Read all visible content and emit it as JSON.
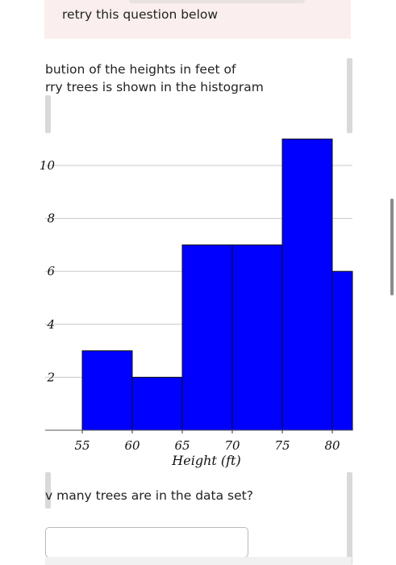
{
  "banner": {
    "text": "retry this question below"
  },
  "prompt": {
    "line1": "bution of the heights in feet of",
    "line2": "rry trees is shown in the histogram"
  },
  "question": {
    "text": "v many trees are in the data set?"
  },
  "answer": {
    "value": ""
  },
  "colors": {
    "bar": "#0000ff",
    "bar_stroke": "#111111",
    "grid": "#c8c8c8",
    "banner": "#fbeeee"
  },
  "chart_data": {
    "type": "bar",
    "title": "",
    "xlabel": "Height (ft)",
    "ylabel": "",
    "bins": [
      {
        "from": 55,
        "to": 60,
        "value": 3
      },
      {
        "from": 60,
        "to": 65,
        "value": 2
      },
      {
        "from": 65,
        "to": 70,
        "value": 7
      },
      {
        "from": 70,
        "to": 75,
        "value": 7
      },
      {
        "from": 75,
        "to": 80,
        "value": 11
      },
      {
        "from": 80,
        "to": 85,
        "value": 6
      }
    ],
    "xticks": [
      "55",
      "60",
      "65",
      "70",
      "75",
      "80"
    ],
    "yticks": [
      "2",
      "4",
      "6",
      "8",
      "10"
    ],
    "xlim": [
      55,
      85
    ],
    "ylim": [
      0,
      11
    ],
    "grid": true
  }
}
